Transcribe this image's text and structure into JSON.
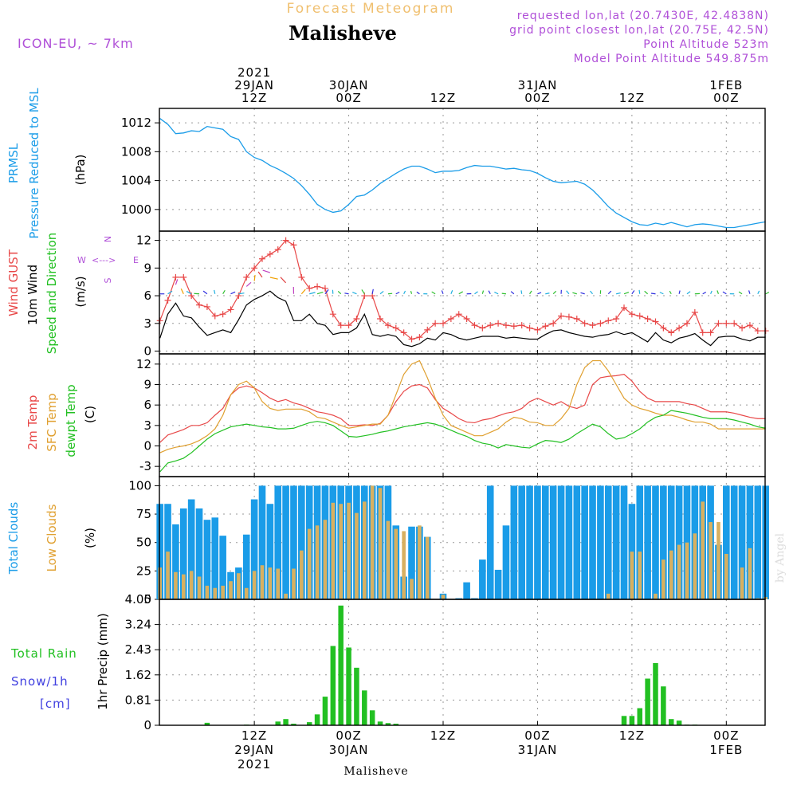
{
  "header": {
    "subtitle": "Forecast Meteogram",
    "location": "Malisheve",
    "model": "ICON-EU, ~ 7km",
    "requested": "requested lon,lat (20.7430E, 42.4838N)",
    "gridpoint": "grid point closest lon,lat (20.75E, 42.5N)",
    "point_alt": "Point Altitude 523m",
    "model_alt": "Model Point Altitude 549.875m",
    "footer": "Malisheve",
    "credit": "by Angel"
  },
  "colors": {
    "pressure": "#1a9ce8",
    "gust": "#e84848",
    "wind": "#000000",
    "temp2m": "#e84848",
    "sfc": "#e0a030",
    "dewpt": "#22c022",
    "total_cloud": "#1a9ce8",
    "low_cloud": "#d8b060",
    "rain": "#22c022",
    "snow": "#4040e0",
    "meta": "#b050d8",
    "title_orange": "#f0c070"
  },
  "axes": {
    "top_ticks": [
      {
        "t": 12,
        "lines": [
          "2021",
          "29JAN",
          "12Z"
        ]
      },
      {
        "t": 24,
        "lines": [
          "30JAN",
          "00Z"
        ]
      },
      {
        "t": 36,
        "lines": [
          "12Z"
        ]
      },
      {
        "t": 48,
        "lines": [
          "31JAN",
          "00Z"
        ]
      },
      {
        "t": 60,
        "lines": [
          "12Z"
        ]
      },
      {
        "t": 72,
        "lines": [
          "1FEB",
          "00Z"
        ]
      }
    ],
    "bottom_ticks": [
      {
        "t": 12,
        "lines": [
          "12Z",
          "29JAN",
          "2021"
        ]
      },
      {
        "t": 24,
        "lines": [
          "00Z",
          "30JAN"
        ]
      },
      {
        "t": 36,
        "lines": [
          "12Z"
        ]
      },
      {
        "t": 48,
        "lines": [
          "00Z",
          "31JAN"
        ]
      },
      {
        "t": 60,
        "lines": [
          "12Z"
        ]
      },
      {
        "t": 72,
        "lines": [
          "00Z",
          "1FEB"
        ]
      }
    ],
    "time_range_hours_after_29JAN_00Z": [
      0,
      77
    ]
  },
  "chart_data": [
    {
      "type": "line",
      "name": "pressure",
      "label_lines": [
        "PRMSL",
        "Pressure Reduced to MSL"
      ],
      "unit": "(hPa)",
      "ylim": [
        997,
        1014
      ],
      "yticks": [
        1000,
        1004,
        1008,
        1012
      ],
      "x": [
        0,
        1,
        2,
        3,
        4,
        5,
        6,
        7,
        8,
        9,
        10,
        11,
        12,
        13,
        14,
        15,
        16,
        17,
        18,
        19,
        20,
        21,
        22,
        23,
        24,
        25,
        26,
        27,
        28,
        29,
        30,
        31,
        32,
        33,
        34,
        35,
        36,
        37,
        38,
        39,
        40,
        41,
        42,
        43,
        44,
        45,
        46,
        47,
        48,
        49,
        50,
        51,
        52,
        53,
        54,
        55,
        56,
        57,
        58,
        59,
        60,
        61,
        62,
        63,
        64,
        65,
        66,
        67,
        68,
        69,
        70,
        71,
        72,
        73,
        74,
        75,
        76,
        77
      ],
      "y": [
        1012.6,
        1011.8,
        1010.5,
        1010.6,
        1010.9,
        1010.8,
        1011.5,
        1011.3,
        1011.1,
        1010.1,
        1009.7,
        1008.0,
        1007.2,
        1006.8,
        1006.1,
        1005.6,
        1005.0,
        1004.3,
        1003.3,
        1002.1,
        1000.7,
        1000.0,
        999.6,
        999.8,
        1000.7,
        1001.8,
        1002.0,
        1002.7,
        1003.6,
        1004.3,
        1005.0,
        1005.6,
        1006.0,
        1006.0,
        1005.6,
        1005.1,
        1005.3,
        1005.3,
        1005.4,
        1005.8,
        1006.1,
        1006.0,
        1006.0,
        1005.8,
        1005.6,
        1005.7,
        1005.5,
        1005.4,
        1005.0,
        1004.4,
        1003.9,
        1003.7,
        1003.8,
        1003.9,
        1003.5,
        1002.7,
        1001.6,
        1000.4,
        999.5,
        998.9,
        998.3,
        997.9,
        997.8,
        998.1,
        997.9,
        998.2,
        997.9,
        997.6,
        997.9,
        998.0,
        997.9,
        997.7,
        997.5,
        997.5,
        997.7,
        997.9,
        998.1,
        998.3
      ]
    },
    {
      "type": "line",
      "name": "wind",
      "label_lines": [
        "Wind GUST",
        "10m Wind",
        "Speed and Direction"
      ],
      "unit": "(m/s)",
      "compass": {
        "w": "W",
        "e": "E",
        "n": "N",
        "s": "S",
        "sym": "<--->"
      },
      "ylim": [
        -0.3,
        13
      ],
      "yticks": [
        0,
        3,
        6,
        9,
        12
      ],
      "x": [
        0,
        1,
        2,
        3,
        4,
        5,
        6,
        7,
        8,
        9,
        10,
        11,
        12,
        13,
        14,
        15,
        16,
        17,
        18,
        19,
        20,
        21,
        22,
        23,
        24,
        25,
        26,
        27,
        28,
        29,
        30,
        31,
        32,
        33,
        34,
        35,
        36,
        37,
        38,
        39,
        40,
        41,
        42,
        43,
        44,
        45,
        46,
        47,
        48,
        49,
        50,
        51,
        52,
        53,
        54,
        55,
        56,
        57,
        58,
        59,
        60,
        61,
        62,
        63,
        64,
        65,
        66,
        67,
        68,
        69,
        70,
        71,
        72,
        73,
        74,
        75,
        76,
        77
      ],
      "gust": [
        3.3,
        5.5,
        8.0,
        8.0,
        6.0,
        5.0,
        4.8,
        3.8,
        4.0,
        4.5,
        6.0,
        8.0,
        9.0,
        10.0,
        10.5,
        11.0,
        12.0,
        11.5,
        8.0,
        6.8,
        7.0,
        6.8,
        4.0,
        2.8,
        2.8,
        3.5,
        6.0,
        6.0,
        3.5,
        2.8,
        2.5,
        2.0,
        1.3,
        1.5,
        2.3,
        3.0,
        3.0,
        3.5,
        4.0,
        3.5,
        2.8,
        2.5,
        2.8,
        3.0,
        2.8,
        2.7,
        2.8,
        2.5,
        2.3,
        2.7,
        3.0,
        3.8,
        3.7,
        3.5,
        3.0,
        2.8,
        3.0,
        3.3,
        3.5,
        4.7,
        4.0,
        3.8,
        3.5,
        3.2,
        2.5,
        2.0,
        2.5,
        3.0,
        4.2,
        2.0,
        2.0,
        3.0,
        3.0,
        3.0,
        2.5,
        2.8,
        2.2,
        2.2
      ],
      "wind": [
        1.4,
        4.0,
        5.2,
        3.8,
        3.6,
        2.6,
        1.7,
        2.0,
        2.3,
        2.0,
        3.4,
        5.0,
        5.6,
        6.0,
        6.5,
        5.8,
        5.4,
        3.3,
        3.3,
        4.0,
        3.0,
        2.8,
        1.8,
        2.0,
        2.0,
        2.5,
        4.0,
        1.8,
        1.6,
        1.8,
        1.6,
        0.7,
        0.5,
        0.8,
        1.4,
        1.2,
        2.0,
        1.8,
        1.4,
        1.2,
        1.4,
        1.6,
        1.6,
        1.6,
        1.4,
        1.5,
        1.4,
        1.3,
        1.3,
        1.8,
        2.2,
        2.3,
        2.0,
        1.8,
        1.6,
        1.5,
        1.7,
        1.8,
        2.1,
        1.8,
        2.0,
        1.5,
        1.0,
        2.0,
        1.2,
        0.9,
        1.4,
        1.6,
        1.9,
        1.2,
        0.6,
        1.5,
        1.6,
        1.6,
        1.3,
        1.1,
        1.5,
        1.5
      ]
    },
    {
      "type": "line",
      "name": "temperature",
      "label_lines": [
        "2m Temp",
        "SFC Temp",
        "dewpt Temp"
      ],
      "unit": "(C)",
      "ylim": [
        -4.5,
        13.5
      ],
      "yticks": [
        -3,
        0,
        3,
        6,
        9,
        12
      ],
      "x": [
        0,
        1,
        2,
        3,
        4,
        5,
        6,
        7,
        8,
        9,
        10,
        11,
        12,
        13,
        14,
        15,
        16,
        17,
        18,
        19,
        20,
        21,
        22,
        23,
        24,
        25,
        26,
        27,
        28,
        29,
        30,
        31,
        32,
        33,
        34,
        35,
        36,
        37,
        38,
        39,
        40,
        41,
        42,
        43,
        44,
        45,
        46,
        47,
        48,
        49,
        50,
        51,
        52,
        53,
        54,
        55,
        56,
        57,
        58,
        59,
        60,
        61,
        62,
        63,
        64,
        65,
        66,
        67,
        68,
        69,
        70,
        71,
        72,
        73,
        74,
        75,
        76,
        77
      ],
      "t2m": [
        0.5,
        1.6,
        2.0,
        2.4,
        3.0,
        3.0,
        3.4,
        4.5,
        5.5,
        7.5,
        8.5,
        8.8,
        8.5,
        7.8,
        7.0,
        6.5,
        6.8,
        6.3,
        6.0,
        5.5,
        5.0,
        4.8,
        4.5,
        4.0,
        3.0,
        3.0,
        3.1,
        3.0,
        3.3,
        4.5,
        6.5,
        8.0,
        8.8,
        9.0,
        8.5,
        6.8,
        5.5,
        4.8,
        4.0,
        3.5,
        3.4,
        3.8,
        4.0,
        4.4,
        4.8,
        5.0,
        5.5,
        6.5,
        7.0,
        6.5,
        6.0,
        6.5,
        5.8,
        5.5,
        6.0,
        9.0,
        10.0,
        10.2,
        10.3,
        10.5,
        9.5,
        8.0,
        7.0,
        6.5,
        6.5,
        6.5,
        6.5,
        6.2,
        6.0,
        5.5,
        5.0,
        5.0,
        5.0,
        4.8,
        4.5,
        4.2,
        4.0,
        4.0
      ],
      "sfc": [
        -1.0,
        -0.5,
        -0.2,
        0.0,
        0.3,
        0.8,
        1.5,
        2.5,
        4.5,
        7.5,
        9.0,
        9.5,
        8.5,
        6.5,
        5.5,
        5.2,
        5.4,
        5.4,
        5.4,
        5.0,
        4.2,
        4.0,
        3.5,
        3.0,
        2.6,
        2.8,
        3.0,
        3.2,
        3.2,
        4.5,
        7.5,
        10.5,
        12.0,
        12.5,
        10.0,
        7.0,
        4.5,
        3.0,
        2.5,
        2.0,
        1.5,
        1.5,
        2.0,
        2.5,
        3.5,
        4.2,
        4.0,
        3.5,
        3.4,
        3.0,
        3.0,
        4.0,
        5.5,
        9.0,
        11.5,
        12.5,
        12.5,
        11.0,
        9.0,
        7.0,
        6.0,
        5.5,
        5.2,
        4.8,
        4.5,
        4.5,
        4.2,
        3.8,
        3.5,
        3.5,
        3.2,
        2.5,
        2.5,
        2.5,
        2.5,
        2.5,
        2.5,
        2.5
      ],
      "dewpt": [
        -3.8,
        -2.5,
        -2.2,
        -1.8,
        -1.0,
        0.0,
        1.0,
        1.8,
        2.3,
        2.8,
        3.0,
        3.2,
        3.0,
        2.8,
        2.7,
        2.5,
        2.5,
        2.6,
        3.0,
        3.4,
        3.6,
        3.4,
        3.0,
        2.2,
        1.4,
        1.3,
        1.5,
        1.7,
        2.0,
        2.2,
        2.5,
        2.8,
        3.0,
        3.2,
        3.4,
        3.2,
        2.8,
        2.3,
        1.8,
        1.4,
        0.8,
        0.4,
        0.2,
        -0.3,
        0.2,
        0.0,
        -0.2,
        -0.3,
        0.3,
        0.8,
        0.7,
        0.5,
        1.0,
        1.8,
        2.5,
        3.2,
        2.8,
        1.8,
        1.0,
        1.2,
        1.8,
        2.5,
        3.5,
        4.2,
        4.5,
        5.2,
        5.0,
        4.8,
        4.5,
        4.2,
        4.0,
        4.0,
        4.0,
        3.8,
        3.5,
        3.2,
        2.8,
        2.6
      ]
    },
    {
      "type": "bar",
      "name": "clouds",
      "label_lines": [
        "Total Clouds",
        "Low Clouds"
      ],
      "unit": "(%)",
      "ylim": [
        0,
        108
      ],
      "yticks": [
        0,
        25,
        50,
        75,
        100
      ],
      "x": [
        0,
        1,
        2,
        3,
        4,
        5,
        6,
        7,
        8,
        9,
        10,
        11,
        12,
        13,
        14,
        15,
        16,
        17,
        18,
        19,
        20,
        21,
        22,
        23,
        24,
        25,
        26,
        27,
        28,
        29,
        30,
        31,
        32,
        33,
        34,
        35,
        36,
        37,
        38,
        39,
        40,
        41,
        42,
        43,
        44,
        45,
        46,
        47,
        48,
        49,
        50,
        51,
        52,
        53,
        54,
        55,
        56,
        57,
        58,
        59,
        60,
        61,
        62,
        63,
        64,
        65,
        66,
        67,
        68,
        69,
        70,
        71,
        72,
        73,
        74,
        75,
        76,
        77
      ],
      "total": [
        84,
        84,
        66,
        80,
        88,
        80,
        70,
        72,
        56,
        24,
        28,
        57,
        88,
        100,
        84,
        100,
        100,
        100,
        100,
        100,
        100,
        100,
        100,
        100,
        100,
        100,
        100,
        100,
        100,
        100,
        65,
        20,
        64,
        64,
        55,
        0,
        5,
        0,
        1,
        15,
        1,
        35,
        100,
        26,
        65,
        100,
        100,
        100,
        100,
        100,
        100,
        100,
        100,
        100,
        100,
        100,
        100,
        100,
        100,
        100,
        84,
        100,
        100,
        100,
        100,
        100,
        100,
        100,
        100,
        100,
        100,
        48,
        100,
        100,
        100,
        100,
        100,
        100
      ],
      "low": [
        28,
        42,
        24,
        22,
        25,
        20,
        12,
        10,
        12,
        16,
        23,
        10,
        25,
        30,
        28,
        27,
        5,
        27,
        43,
        62,
        65,
        70,
        85,
        84,
        85,
        76,
        86,
        100,
        98,
        69,
        62,
        60,
        18,
        65,
        55,
        0,
        4,
        0,
        0,
        0,
        0,
        0,
        0,
        0,
        0,
        0,
        0,
        0,
        0,
        0,
        0,
        0,
        0,
        0,
        0,
        0,
        0,
        5,
        0,
        0,
        42,
        42,
        0,
        5,
        35,
        43,
        48,
        50,
        58,
        86,
        68,
        68,
        40,
        0,
        28,
        45,
        1,
        2
      ]
    },
    {
      "type": "bar",
      "name": "precip",
      "label_lines": [
        "Total  Rain",
        "Snow/1h",
        "[cm]"
      ],
      "unit": "1hr Precip (mm)",
      "ylim": [
        0,
        4.05
      ],
      "yticks": [
        0,
        0.81,
        1.62,
        2.43,
        3.24,
        4.05
      ],
      "ytick_labels": [
        "0",
        "0.81",
        "1.62",
        "2.43",
        "3.24",
        "4.05"
      ],
      "x": [
        6,
        11,
        15,
        16,
        17,
        19,
        20,
        21,
        22,
        23,
        24,
        25,
        26,
        27,
        28,
        29,
        30,
        59,
        60,
        61,
        62,
        63,
        64,
        65,
        66,
        67,
        68
      ],
      "rain": [
        0.08,
        0.02,
        0.12,
        0.2,
        0.05,
        0.1,
        0.35,
        0.92,
        2.55,
        3.85,
        2.5,
        1.85,
        1.12,
        0.48,
        0.12,
        0.07,
        0.05,
        0.3,
        0.3,
        0.55,
        1.5,
        2.0,
        1.25,
        0.2,
        0.15,
        0.02,
        0.02
      ]
    }
  ]
}
